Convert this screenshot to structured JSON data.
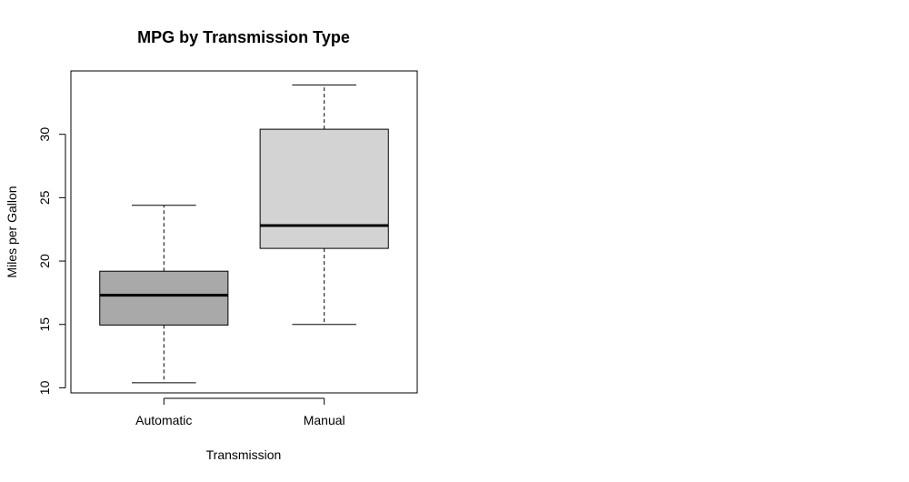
{
  "chart_data": {
    "type": "box",
    "title": "MPG by Transmission Type",
    "xlabel": "Transmission",
    "ylabel": "Miles per Gallon",
    "ylim": [
      9.6,
      35.0
    ],
    "yticks": [
      10,
      15,
      20,
      25,
      30
    ],
    "categories": [
      "Automatic",
      "Manual"
    ],
    "boxes": [
      {
        "name": "Automatic",
        "min": 10.4,
        "q1": 14.95,
        "median": 17.3,
        "q3": 19.2,
        "max": 24.4,
        "fill": "#a9a9a9"
      },
      {
        "name": "Manual",
        "min": 15.0,
        "q1": 21.0,
        "median": 22.8,
        "q3": 30.4,
        "max": 33.9,
        "fill": "#d3d3d3"
      }
    ],
    "grid": false,
    "legend": "none"
  }
}
